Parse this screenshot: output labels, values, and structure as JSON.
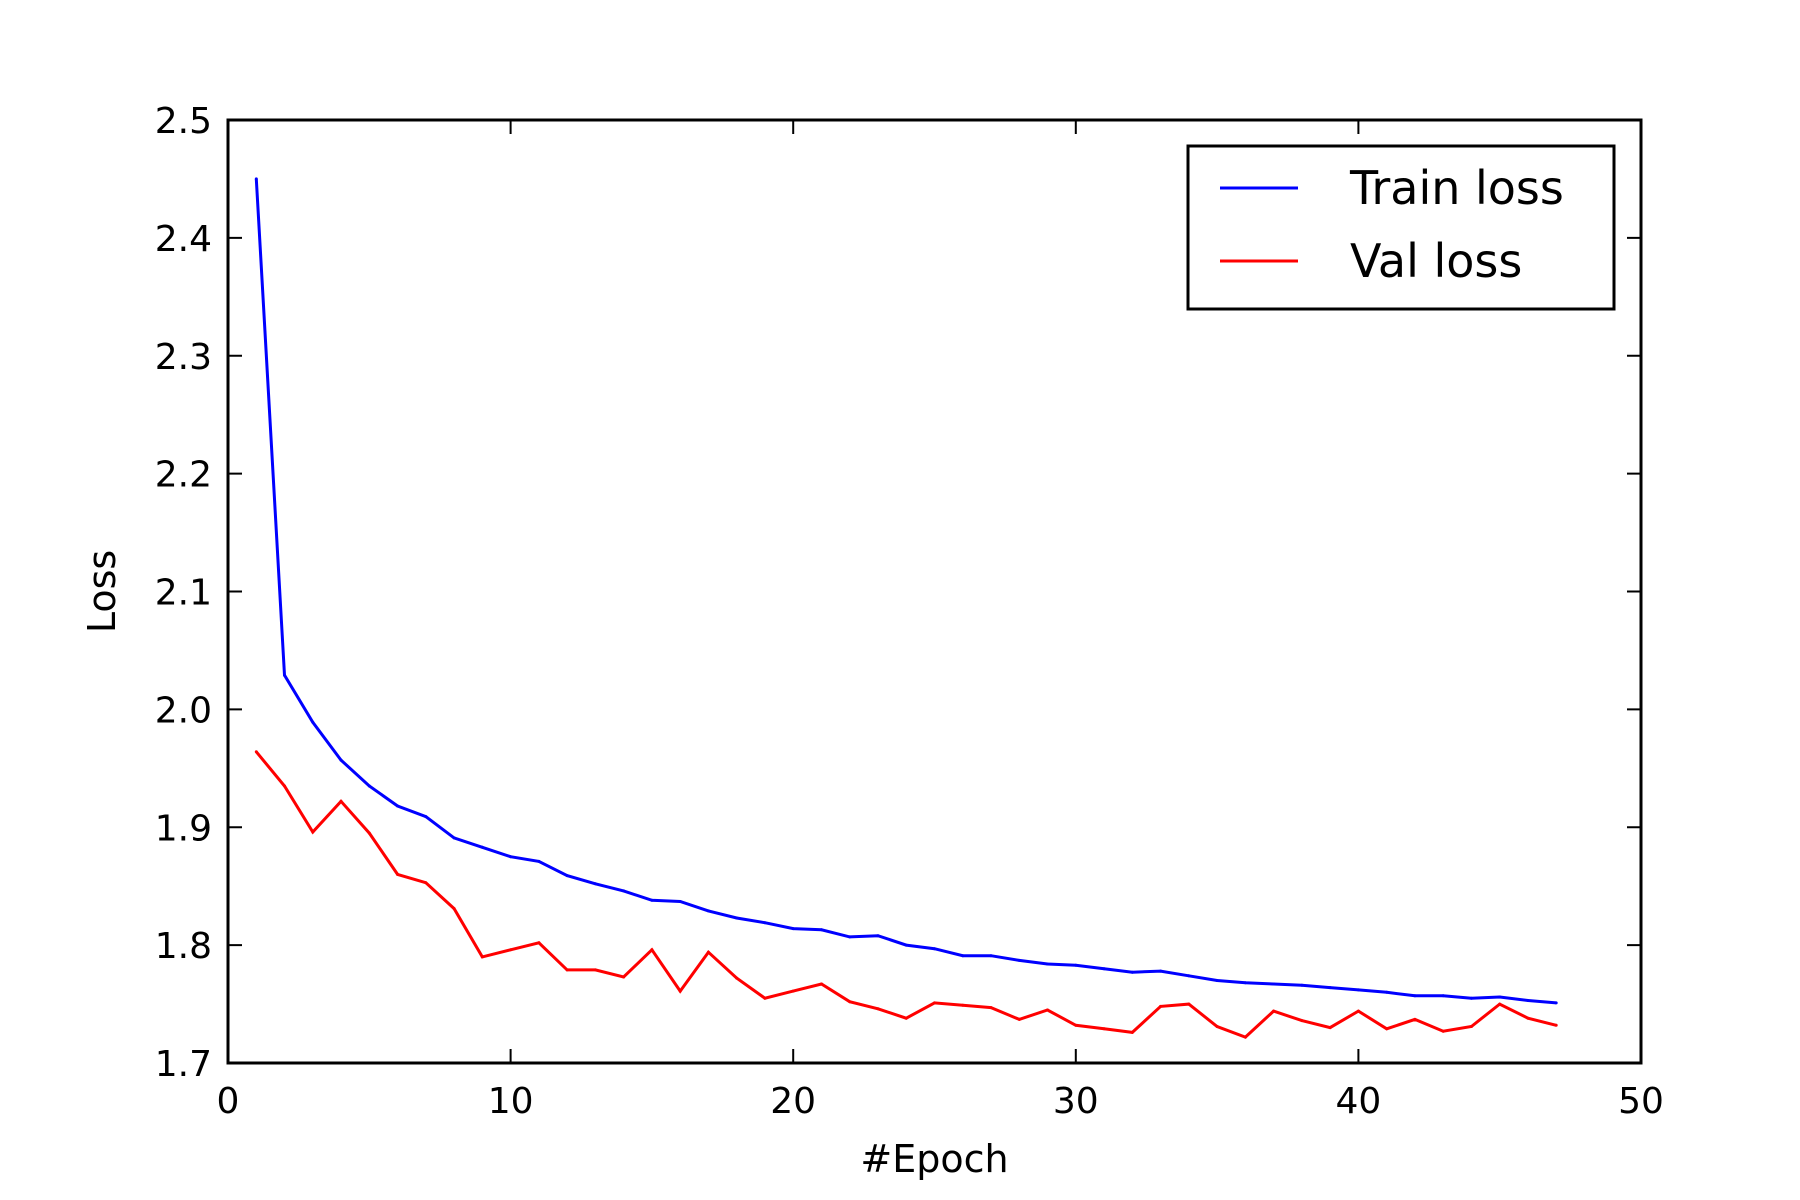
{
  "chart_data": {
    "type": "line",
    "title": "",
    "xlabel": "#Epoch",
    "ylabel": "Loss",
    "xlim": [
      0,
      50
    ],
    "ylim": [
      1.7,
      2.5
    ],
    "xticks": [
      0,
      10,
      20,
      30,
      40,
      50
    ],
    "xtick_labels": [
      "0",
      "10",
      "20",
      "30",
      "40",
      "50"
    ],
    "yticks": [
      1.7,
      1.8,
      1.9,
      2.0,
      2.1,
      2.2,
      2.3,
      2.4,
      2.5
    ],
    "ytick_labels": [
      "1.7",
      "1.8",
      "1.9",
      "2.0",
      "2.1",
      "2.2",
      "2.3",
      "2.4",
      "2.5"
    ],
    "grid": false,
    "legend_position": "top-right",
    "x": [
      1,
      2,
      3,
      4,
      5,
      6,
      7,
      8,
      9,
      10,
      11,
      12,
      13,
      14,
      15,
      16,
      17,
      18,
      19,
      20,
      21,
      22,
      23,
      24,
      25,
      26,
      27,
      28,
      29,
      30,
      31,
      32,
      33,
      34,
      35,
      36,
      37,
      38,
      39,
      40,
      41,
      42,
      43,
      44,
      45,
      46,
      47
    ],
    "series": [
      {
        "name": "Train loss",
        "color": "#0000ff",
        "values": [
          2.45,
          2.029,
          1.989,
          1.957,
          1.935,
          1.918,
          1.909,
          1.891,
          1.883,
          1.875,
          1.871,
          1.859,
          1.852,
          1.846,
          1.838,
          1.837,
          1.829,
          1.823,
          1.819,
          1.814,
          1.813,
          1.807,
          1.808,
          1.8,
          1.797,
          1.791,
          1.791,
          1.787,
          1.784,
          1.783,
          1.78,
          1.777,
          1.778,
          1.774,
          1.77,
          1.768,
          1.767,
          1.766,
          1.764,
          1.762,
          1.76,
          1.757,
          1.757,
          1.755,
          1.756,
          1.753,
          1.751
        ]
      },
      {
        "name": "Val loss",
        "color": "#ff0000",
        "values": [
          1.964,
          1.935,
          1.896,
          1.922,
          1.895,
          1.86,
          1.853,
          1.831,
          1.79,
          1.796,
          1.802,
          1.779,
          1.779,
          1.773,
          1.796,
          1.761,
          1.794,
          1.772,
          1.755,
          1.761,
          1.767,
          1.752,
          1.746,
          1.738,
          1.751,
          1.749,
          1.747,
          1.737,
          1.745,
          1.732,
          1.729,
          1.726,
          1.748,
          1.75,
          1.731,
          1.722,
          1.744,
          1.736,
          1.73,
          1.744,
          1.729,
          1.737,
          1.727,
          1.731,
          1.75,
          1.738,
          1.732
        ]
      }
    ]
  }
}
